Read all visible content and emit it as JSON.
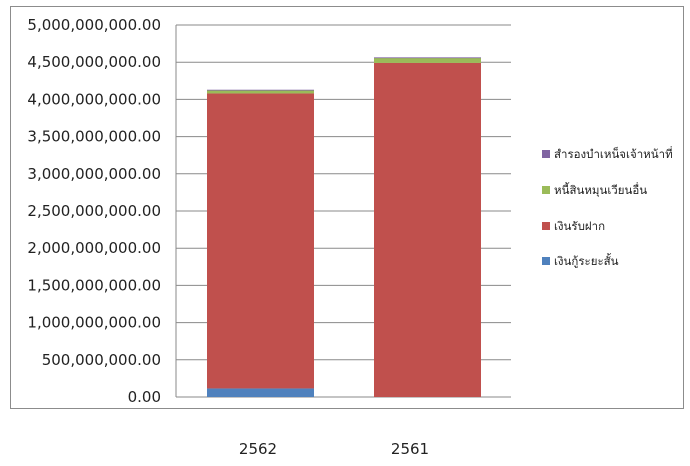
{
  "chart_data": {
    "type": "bar",
    "stacked": true,
    "categories": [
      "2562",
      "2561"
    ],
    "series": [
      {
        "name": "เงินกู้ระยะสั้น",
        "color": "#4f81bd",
        "values": [
          115000000,
          0
        ]
      },
      {
        "name": "เงินรับฝาก",
        "color": "#c0504d",
        "values": [
          3965000000,
          4490000000
        ]
      },
      {
        "name": "หนี้สินหมุนเวียนอื่น",
        "color": "#9bbb59",
        "values": [
          45000000,
          70000000
        ]
      },
      {
        "name": "สำรองบำเหน็จเจ้าหน้าที่",
        "color": "#8064a2",
        "values": [
          5000000,
          5000000
        ]
      }
    ],
    "ylim": [
      0,
      5000000000
    ],
    "ytick_labels": [
      "0.00",
      "500,000,000.00",
      "1,000,000,000.00",
      "1,500,000,000.00",
      "2,000,000,000.00",
      "2,500,000,000.00",
      "3,000,000,000.00",
      "3,500,000,000.00",
      "4,000,000,000.00",
      "4,500,000,000.00",
      "5,000,000,000.00"
    ],
    "grid": true,
    "legend_position": "right"
  }
}
